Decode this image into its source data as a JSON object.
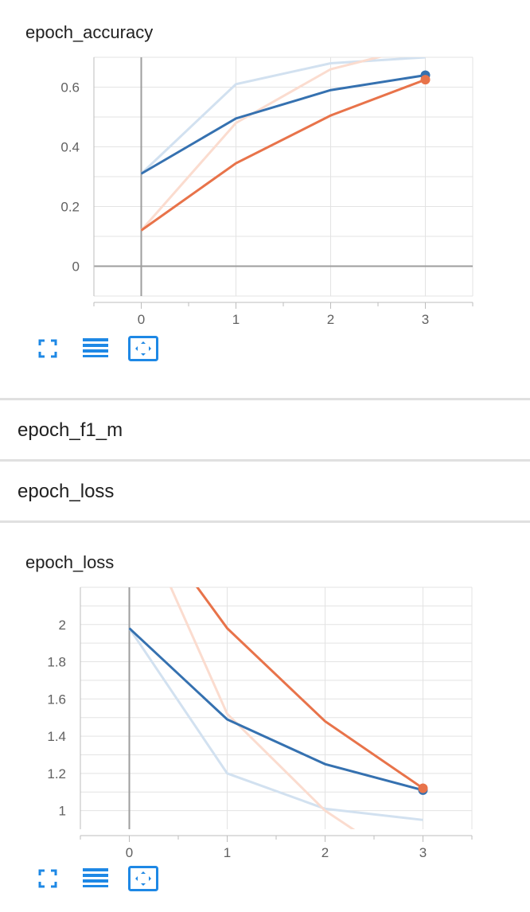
{
  "sections": {
    "f1_m": "epoch_f1_m",
    "loss": "epoch_loss"
  },
  "toolbar": {
    "fullscreen_icon": "fullscreen-icon",
    "legend_icon": "legend-lines-icon",
    "fit_domain_icon": "fit-domain-icon"
  },
  "colors": {
    "series_blue": "#3571b0",
    "series_blue_light": "#d2e1f0",
    "series_orange": "#e8734a",
    "series_orange_light": "#fbdccf"
  },
  "chart_data": [
    {
      "type": "line",
      "title": "epoch_accuracy",
      "x": [
        0,
        1,
        2,
        3
      ],
      "xticks": [
        "0",
        "1",
        "2",
        "3"
      ],
      "yticks": [
        "0",
        "0.2",
        "0.4",
        "0.6"
      ],
      "ytick_values": [
        0,
        0.2,
        0.4,
        0.6
      ],
      "xlim": [
        -0.5,
        3.5
      ],
      "ylim": [
        -0.1,
        0.7
      ],
      "grid": true,
      "series": [
        {
          "color": "#3571b0",
          "values": [
            0.31,
            0.495,
            0.59,
            0.64
          ],
          "raw": [
            0.31,
            0.61,
            0.68,
            0.7
          ]
        },
        {
          "color": "#e8734a",
          "values": [
            0.12,
            0.345,
            0.505,
            0.625
          ],
          "raw": [
            0.12,
            0.48,
            0.66,
            0.74
          ]
        }
      ]
    },
    {
      "type": "line",
      "title": "epoch_loss",
      "x": [
        0,
        1,
        2,
        3
      ],
      "xticks": [
        "0",
        "1",
        "2",
        "3"
      ],
      "yticks": [
        "1",
        "1.2",
        "1.4",
        "1.6",
        "1.8",
        "2"
      ],
      "ytick_values": [
        1,
        1.2,
        1.4,
        1.6,
        1.8,
        2
      ],
      "xlim": [
        -0.5,
        3.5
      ],
      "ylim": [
        0.9,
        2.2
      ],
      "grid": true,
      "series": [
        {
          "color": "#3571b0",
          "values": [
            1.98,
            1.49,
            1.25,
            1.11
          ],
          "raw": [
            1.98,
            1.2,
            1.01,
            0.95
          ]
        },
        {
          "color": "#e8734a",
          "values": [
            2.7,
            1.98,
            1.48,
            1.12
          ],
          "raw": [
            2.7,
            1.52,
            1.0,
            0.65
          ]
        }
      ]
    }
  ]
}
